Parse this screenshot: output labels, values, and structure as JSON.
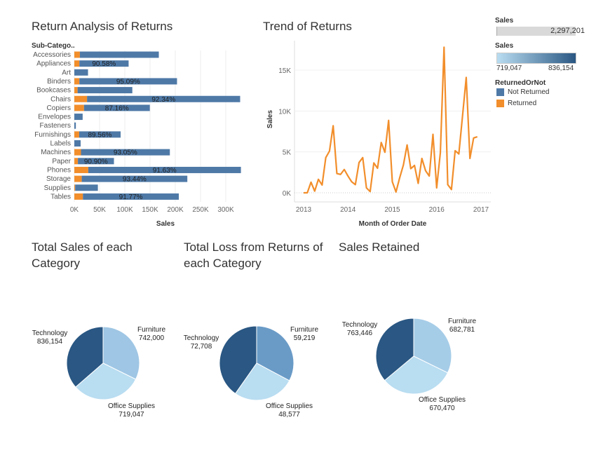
{
  "titles": {
    "bar": "Return Analysis of Returns",
    "line": "Trend of Returns",
    "pie1": "Total Sales of each Category",
    "pie2": "Total Loss from Returns of each Category",
    "pie3": "Sales Retained"
  },
  "legend": {
    "size_title": "Sales",
    "size_value": "2,297,201",
    "color_title": "Sales",
    "color_min": "719,047",
    "color_max": "836,154",
    "color_low": "#b9ddf1",
    "color_high": "#2a5783",
    "returned_title": "ReturnedOrNot",
    "items": [
      {
        "label": "Not Returned",
        "color": "#4e79a7"
      },
      {
        "label": "Returned",
        "color": "#f28e2b"
      }
    ]
  },
  "chart_data": [
    {
      "type": "bar",
      "stacked": true,
      "orientation": "horizontal",
      "title": "Return Analysis of Returns",
      "row_header": "Sub-Catego..",
      "xlabel": "Sales",
      "xlim": [
        0,
        340000
      ],
      "xticks": [
        "0K",
        "50K",
        "100K",
        "150K",
        "200K",
        "250K",
        "300K"
      ],
      "categories": [
        "Accessories",
        "Appliances",
        "Art",
        "Binders",
        "Bookcases",
        "Chairs",
        "Copiers",
        "Envelopes",
        "Fasteners",
        "Furnishings",
        "Labels",
        "Machines",
        "Paper",
        "Phones",
        "Storage",
        "Supplies",
        "Tables"
      ],
      "series": [
        {
          "name": "Returned",
          "color": "#f28e2b",
          "values": [
            11000,
            10100,
            0,
            10000,
            6500,
            25200,
            19200,
            0,
            0,
            9600,
            0,
            13200,
            7100,
            27600,
            14700,
            1700,
            17000
          ]
        },
        {
          "name": "Not Returned",
          "color": "#4e79a7",
          "values": [
            156380,
            97432,
            27119,
            193413,
            108380,
            303249,
            130328,
            16476,
            3024,
            82105,
            12486,
            176039,
            71379,
            302407,
            209144,
            44974,
            189966
          ]
        }
      ],
      "labels": [
        "",
        "90.58%",
        "",
        "95.09%",
        "",
        "92.34%",
        "87.16%",
        "",
        "",
        "89.56%",
        "",
        "93.05%",
        "90.90%",
        "91.63%",
        "93.44%",
        "",
        "91.77%"
      ],
      "grid": true
    },
    {
      "type": "line",
      "title": "Trend of Returns",
      "xlabel": "Month of Order Date",
      "ylabel": "Sales",
      "ylim": [
        0,
        18000
      ],
      "yticks": [
        "0K",
        "5K",
        "10K",
        "15K"
      ],
      "xticks": [
        "2013",
        "2014",
        "2015",
        "2016",
        "2017"
      ],
      "x_start": "2013-01",
      "x_end": "2016-12",
      "color": "#f28e2b",
      "values": [
        0,
        0,
        1300,
        200,
        1650,
        950,
        4300,
        5100,
        8200,
        2350,
        2250,
        2850,
        2050,
        1350,
        1000,
        3700,
        4300,
        600,
        150,
        3650,
        3000,
        6150,
        4950,
        8850,
        1350,
        100,
        1850,
        3400,
        5850,
        2950,
        3350,
        1150,
        4200,
        2700,
        2050,
        7150,
        600,
        4900,
        17800,
        1000,
        400,
        5150,
        4750,
        9400,
        14100,
        4200,
        6700,
        6850
      ],
      "grid": true
    },
    {
      "type": "pie",
      "title": "Total Sales of each Category",
      "slices": [
        {
          "label": "Furniture",
          "value": 742000,
          "display": "742,000",
          "color": "#9fc6e4"
        },
        {
          "label": "Office Supplies",
          "value": 719047,
          "display": "719,047",
          "color": "#b9ddf1"
        },
        {
          "label": "Technology",
          "value": 836154,
          "display": "836,154",
          "color": "#2a5783"
        }
      ]
    },
    {
      "type": "pie",
      "title": "Total Loss from Returns of each Category",
      "slices": [
        {
          "label": "Furniture",
          "value": 59219,
          "display": "59,219",
          "color": "#6a9bc7"
        },
        {
          "label": "Office Supplies",
          "value": 48577,
          "display": "48,577",
          "color": "#b9ddf1"
        },
        {
          "label": "Technology",
          "value": 72708,
          "display": "72,708",
          "color": "#2a5783"
        }
      ]
    },
    {
      "type": "pie",
      "title": "Sales Retained",
      "slices": [
        {
          "label": "Furniture",
          "value": 682781,
          "display": "682,781",
          "color": "#a6cde8"
        },
        {
          "label": "Office Supplies",
          "value": 670470,
          "display": "670,470",
          "color": "#b9ddf1"
        },
        {
          "label": "Technology",
          "value": 763446,
          "display": "763,446",
          "color": "#2a5783"
        }
      ]
    }
  ]
}
